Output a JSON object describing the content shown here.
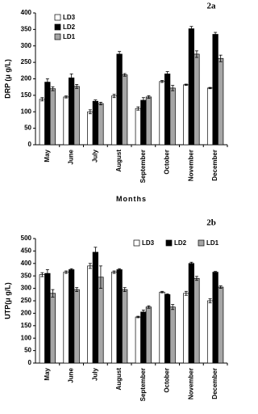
{
  "chart_data": [
    {
      "type": "bar",
      "title": "2a",
      "ylabel": "DRP (μ g/L)",
      "xlabel": "Months",
      "categories": [
        "May",
        "June",
        "July",
        "August",
        "September",
        "October",
        "November",
        "December"
      ],
      "ylim": [
        0,
        400
      ],
      "yticks": [
        0,
        50,
        100,
        150,
        200,
        250,
        300,
        350,
        400
      ],
      "legend": "upper left",
      "series": [
        {
          "name": "LD3",
          "color": "#ffffff",
          "values": [
            138,
            145,
            100,
            148,
            110,
            192,
            182,
            172
          ],
          "errors": [
            5,
            3,
            6,
            5,
            5,
            3,
            2,
            2
          ]
        },
        {
          "name": "LD2",
          "color": "#000000",
          "values": [
            190,
            203,
            132,
            275,
            135,
            215,
            352,
            335
          ],
          "errors": [
            10,
            12,
            4,
            8,
            8,
            7,
            7,
            6
          ]
        },
        {
          "name": "LD1",
          "color": "#a6a6a6",
          "values": [
            170,
            177,
            125,
            212,
            145,
            172,
            275,
            262
          ],
          "errors": [
            6,
            6,
            4,
            4,
            4,
            8,
            10,
            10
          ]
        }
      ]
    },
    {
      "type": "bar",
      "title": "2b",
      "ylabel": "UTP(μ g/L)",
      "categories": [
        "May",
        "June",
        "July",
        "August",
        "September",
        "October",
        "November",
        "December"
      ],
      "ylim": [
        0,
        500
      ],
      "yticks": [
        0,
        50,
        100,
        150,
        200,
        250,
        300,
        350,
        400,
        450,
        500
      ],
      "legend": "upper right",
      "series": [
        {
          "name": "LD3",
          "color": "#ffffff",
          "values": [
            355,
            365,
            390,
            365,
            185,
            285,
            280,
            250
          ],
          "errors": [
            8,
            5,
            10,
            5,
            3,
            3,
            8,
            8
          ]
        },
        {
          "name": "LD2",
          "color": "#000000",
          "values": [
            360,
            375,
            445,
            375,
            205,
            275,
            400,
            365
          ],
          "errors": [
            15,
            4,
            20,
            4,
            8,
            3,
            5,
            3
          ]
        },
        {
          "name": "LD1",
          "color": "#a6a6a6",
          "values": [
            280,
            295,
            345,
            295,
            225,
            225,
            340,
            305
          ],
          "errors": [
            15,
            8,
            45,
            8,
            5,
            10,
            8,
            5
          ]
        }
      ]
    }
  ]
}
